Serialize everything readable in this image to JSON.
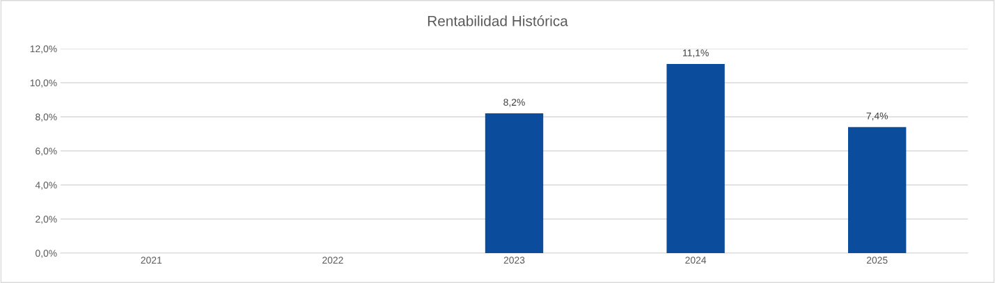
{
  "chart_data": {
    "type": "bar",
    "title": "Rentabilidad Histórica",
    "categories": [
      "2021",
      "2022",
      "2023",
      "2024",
      "2025"
    ],
    "values": [
      null,
      null,
      8.2,
      11.1,
      7.4
    ],
    "value_labels": [
      null,
      null,
      "8,2%",
      "11,1%",
      "7,4%"
    ],
    "color": "#0b4c9c",
    "ylim": [
      0,
      12
    ],
    "yticks": [
      {
        "value": 0,
        "label": "0,0%"
      },
      {
        "value": 2,
        "label": "2,0%"
      },
      {
        "value": 4,
        "label": "4,0%"
      },
      {
        "value": 6,
        "label": "6,0%"
      },
      {
        "value": 8,
        "label": "8,0%"
      },
      {
        "value": 10,
        "label": "10,0%"
      },
      {
        "value": 12,
        "label": "12,0%"
      }
    ],
    "grid": "y"
  }
}
